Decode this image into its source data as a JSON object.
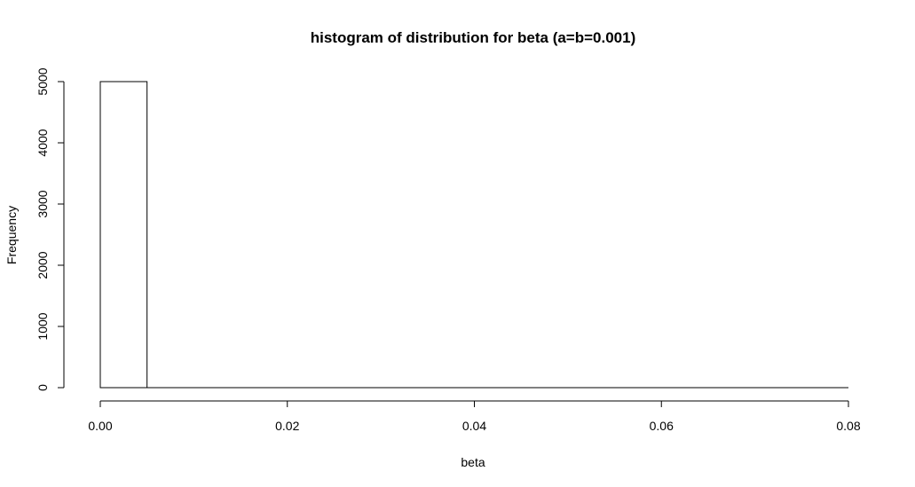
{
  "chart_data": {
    "type": "bar",
    "title": "histogram of distribution for beta (a=b=0.001)",
    "xlabel": "beta",
    "ylabel": "Frequency",
    "xlim": [
      0,
      0.08
    ],
    "ylim": [
      0,
      5000
    ],
    "x_ticks": [
      "0.00",
      "0.02",
      "0.04",
      "0.06",
      "0.08"
    ],
    "y_ticks": [
      "0",
      "1000",
      "2000",
      "3000",
      "4000",
      "5000"
    ],
    "bin_width": 0.005,
    "bins": [
      {
        "start": 0.0,
        "end": 0.005,
        "count": 5000
      },
      {
        "start": 0.005,
        "end": 0.01,
        "count": 0
      },
      {
        "start": 0.01,
        "end": 0.015,
        "count": 0
      },
      {
        "start": 0.015,
        "end": 0.02,
        "count": 0
      },
      {
        "start": 0.02,
        "end": 0.025,
        "count": 0
      },
      {
        "start": 0.025,
        "end": 0.03,
        "count": 0
      },
      {
        "start": 0.03,
        "end": 0.035,
        "count": 0
      },
      {
        "start": 0.035,
        "end": 0.04,
        "count": 0
      },
      {
        "start": 0.04,
        "end": 0.045,
        "count": 0
      },
      {
        "start": 0.045,
        "end": 0.05,
        "count": 0
      },
      {
        "start": 0.05,
        "end": 0.055,
        "count": 0
      },
      {
        "start": 0.055,
        "end": 0.06,
        "count": 0
      },
      {
        "start": 0.06,
        "end": 0.065,
        "count": 0
      },
      {
        "start": 0.065,
        "end": 0.07,
        "count": 0
      },
      {
        "start": 0.07,
        "end": 0.075,
        "count": 0
      },
      {
        "start": 0.075,
        "end": 0.08,
        "count": 0
      }
    ],
    "grid": false,
    "colors": {
      "bar_fill": "#ffffff",
      "bar_stroke": "#000000"
    }
  }
}
